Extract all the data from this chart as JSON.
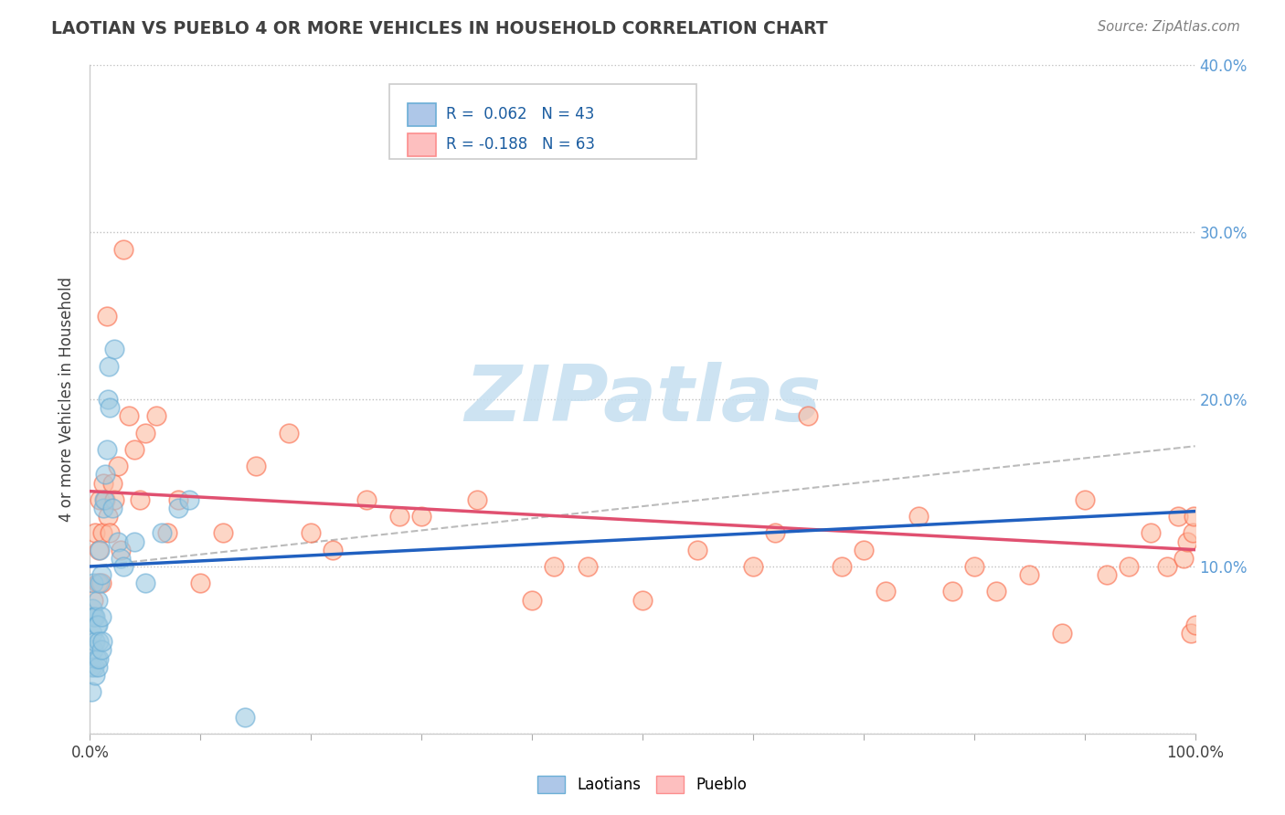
{
  "title": "LAOTIAN VS PUEBLO 4 OR MORE VEHICLES IN HOUSEHOLD CORRELATION CHART",
  "source": "Source: ZipAtlas.com",
  "ylabel": "4 or more Vehicles in Household",
  "xlim": [
    0,
    1.0
  ],
  "ylim": [
    0,
    0.4
  ],
  "xticks": [
    0.0,
    0.1,
    0.2,
    0.3,
    0.4,
    0.5,
    0.6,
    0.7,
    0.8,
    0.9,
    1.0
  ],
  "xticklabels": [
    "0.0%",
    "",
    "",
    "",
    "",
    "",
    "",
    "",
    "",
    "",
    "100.0%"
  ],
  "yticks_left": [
    0.0,
    0.1,
    0.2,
    0.3,
    0.4
  ],
  "yticklabels_left": [
    "",
    "",
    "",
    "",
    ""
  ],
  "yticks_right": [
    0.0,
    0.1,
    0.2,
    0.3,
    0.4
  ],
  "yticklabels_right": [
    "",
    "10.0%",
    "20.0%",
    "30.0%",
    "40.0%"
  ],
  "laotian_color": "#9ecae1",
  "laotian_edge_color": "#6baed6",
  "pueblo_color": "#fcbba1",
  "pueblo_edge_color": "#fb6a4a",
  "title_color": "#404040",
  "source_color": "#808080",
  "right_tick_color": "#5b9bd5",
  "grid_color": "#c0c0c0",
  "blue_line_color": "#2060c0",
  "pink_line_color": "#e05070",
  "dashed_line_color": "#aaaaaa",
  "watermark_color": "#c5dff0",
  "laotian_scatter_x": [
    0.001,
    0.001,
    0.002,
    0.002,
    0.003,
    0.003,
    0.003,
    0.004,
    0.004,
    0.005,
    0.005,
    0.005,
    0.006,
    0.006,
    0.007,
    0.007,
    0.007,
    0.008,
    0.008,
    0.009,
    0.009,
    0.01,
    0.01,
    0.01,
    0.011,
    0.012,
    0.013,
    0.014,
    0.015,
    0.016,
    0.017,
    0.018,
    0.02,
    0.022,
    0.025,
    0.028,
    0.03,
    0.04,
    0.05,
    0.065,
    0.08,
    0.09,
    0.14
  ],
  "laotian_scatter_y": [
    0.04,
    0.025,
    0.06,
    0.075,
    0.05,
    0.07,
    0.09,
    0.04,
    0.07,
    0.035,
    0.055,
    0.07,
    0.045,
    0.065,
    0.04,
    0.065,
    0.08,
    0.045,
    0.055,
    0.09,
    0.11,
    0.05,
    0.07,
    0.095,
    0.055,
    0.135,
    0.14,
    0.155,
    0.17,
    0.2,
    0.22,
    0.195,
    0.135,
    0.23,
    0.115,
    0.105,
    0.1,
    0.115,
    0.09,
    0.12,
    0.135,
    0.14,
    0.01
  ],
  "pueblo_scatter_x": [
    0.003,
    0.005,
    0.007,
    0.008,
    0.009,
    0.01,
    0.011,
    0.012,
    0.014,
    0.015,
    0.016,
    0.018,
    0.02,
    0.022,
    0.025,
    0.028,
    0.03,
    0.035,
    0.04,
    0.045,
    0.05,
    0.06,
    0.07,
    0.08,
    0.1,
    0.12,
    0.15,
    0.18,
    0.2,
    0.22,
    0.25,
    0.28,
    0.3,
    0.35,
    0.4,
    0.42,
    0.45,
    0.5,
    0.55,
    0.6,
    0.62,
    0.65,
    0.68,
    0.7,
    0.72,
    0.75,
    0.78,
    0.8,
    0.82,
    0.85,
    0.88,
    0.9,
    0.92,
    0.94,
    0.96,
    0.975,
    0.985,
    0.99,
    0.993,
    0.996,
    0.998,
    0.999,
    1.0
  ],
  "pueblo_scatter_y": [
    0.08,
    0.12,
    0.09,
    0.11,
    0.14,
    0.09,
    0.12,
    0.15,
    0.14,
    0.25,
    0.13,
    0.12,
    0.15,
    0.14,
    0.16,
    0.11,
    0.29,
    0.19,
    0.17,
    0.14,
    0.18,
    0.19,
    0.12,
    0.14,
    0.09,
    0.12,
    0.16,
    0.18,
    0.12,
    0.11,
    0.14,
    0.13,
    0.13,
    0.14,
    0.08,
    0.1,
    0.1,
    0.08,
    0.11,
    0.1,
    0.12,
    0.19,
    0.1,
    0.11,
    0.085,
    0.13,
    0.085,
    0.1,
    0.085,
    0.095,
    0.06,
    0.14,
    0.095,
    0.1,
    0.12,
    0.1,
    0.13,
    0.105,
    0.115,
    0.06,
    0.12,
    0.13,
    0.065
  ],
  "blue_line_x0": 0.0,
  "blue_line_y0": 0.1,
  "blue_line_x1": 1.0,
  "blue_line_y1": 0.133,
  "pink_line_x0": 0.0,
  "pink_line_y0": 0.145,
  "pink_line_x1": 1.0,
  "pink_line_y1": 0.11,
  "dashed_line_x0": 0.0,
  "dashed_line_y0": 0.1,
  "dashed_line_x1": 1.0,
  "dashed_line_y1": 0.172,
  "legend_label_laotian": "Laotians",
  "legend_label_pueblo": "Pueblo",
  "legend_R_laotian": "R =  0.062",
  "legend_N_laotian": "N = 43",
  "legend_R_pueblo": "R = -0.188",
  "legend_N_pueblo": "N = 63"
}
